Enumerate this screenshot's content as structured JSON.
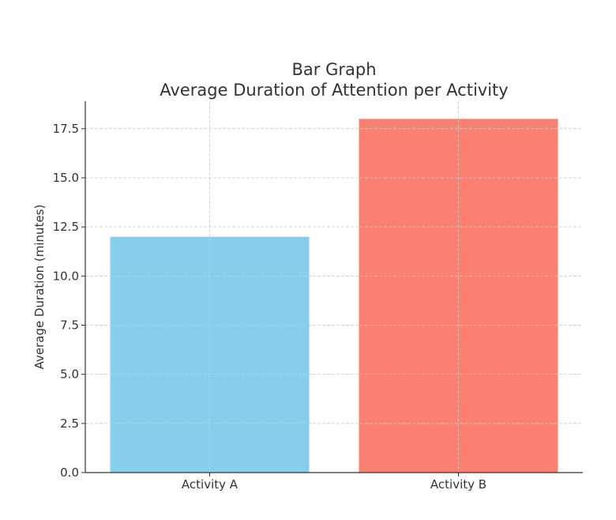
{
  "chart_data": {
    "type": "bar",
    "title": "Bar Graph",
    "subtitle": "Average Duration of Attention per Activity",
    "xlabel": "",
    "ylabel": "Average Duration (minutes)",
    "categories": [
      "Activity A",
      "Activity B"
    ],
    "values": [
      12,
      18
    ],
    "colors": [
      "#87CEEB",
      "#FA8072"
    ],
    "ylim": [
      0,
      18.9
    ],
    "yticks": [
      0,
      2.5,
      5,
      7.5,
      10,
      12.5,
      15,
      17.5
    ],
    "ytick_labels": [
      "0.0",
      "2.5",
      "5.0",
      "7.5",
      "10.0",
      "12.5",
      "15.0",
      "17.5"
    ],
    "grid": true
  }
}
